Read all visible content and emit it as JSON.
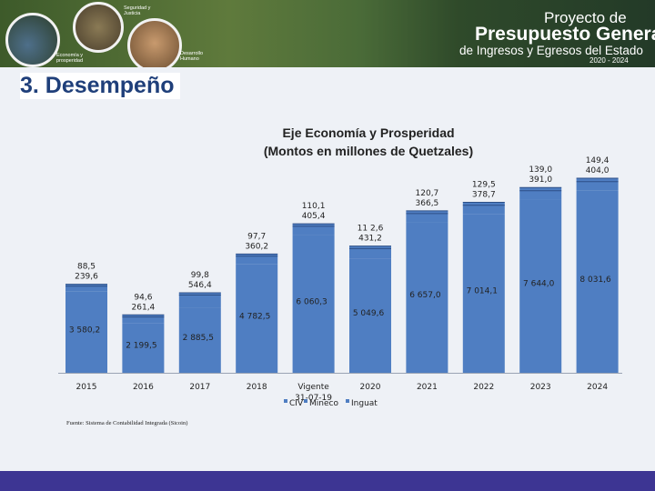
{
  "header": {
    "title_line1": "Proyecto de",
    "title_line2": "Presupuesto General",
    "title_line3": "de Ingresos y Egresos del Estado",
    "years": "2020 - 2024",
    "circle_labels": [
      "Seguridad y Justicia",
      "Economía y prosperidad",
      "Desarrollo Humano"
    ]
  },
  "section_title": "3. Desempeño",
  "source": "Fuente: Sistema de Contabilidad Integrada (Sicoin)",
  "colors": {
    "bar": "#4f7ec2",
    "title": "#1f3f7a",
    "footer": "#3d3593"
  },
  "chart_data": {
    "type": "bar",
    "title": "Eje Economía y Prosperidad",
    "subtitle": "(Montos en millones de Quetzales)",
    "stacked": true,
    "categories": [
      "2015",
      "2016",
      "2017",
      "2018",
      "Vigente 31-07-19",
      "2020",
      "2021",
      "2022",
      "2023",
      "2024"
    ],
    "legend": [
      "CIV",
      "Mineco",
      "Inguat"
    ],
    "series": [
      {
        "name": "CIV",
        "values": [
          3580.2,
          2199.5,
          2885.5,
          4782.5,
          6060.3,
          5049.6,
          6657.0,
          7014.1,
          7644.0,
          8031.6
        ],
        "labels": [
          "3 580,2",
          "2 199,5",
          "2 885,5",
          "4 782,5",
          "6 060,3",
          "5 049,6",
          "6 657,0",
          "7 014,1",
          "7 644,0",
          "8 031,6"
        ]
      },
      {
        "name": "Mineco",
        "values": [
          239.6,
          261.4,
          546.4,
          360.2,
          405.4,
          431.2,
          366.5,
          378.7,
          391.0,
          404.0
        ],
        "labels": [
          "239,6",
          "261,4",
          "546,4",
          "360,2",
          "405,4",
          "431,2",
          "366,5",
          "378,7",
          "391,0",
          "404,0"
        ]
      },
      {
        "name": "Inguat",
        "values": [
          88.5,
          94.6,
          99.8,
          97.7,
          110.1,
          112.6,
          120.7,
          129.5,
          139.0,
          149.4
        ],
        "labels": [
          "88,5",
          "94,6",
          "99,8",
          "97,7",
          "110,1",
          "11 2,6",
          "120,7",
          "129,5",
          "139,0",
          "149,4"
        ]
      }
    ]
  }
}
